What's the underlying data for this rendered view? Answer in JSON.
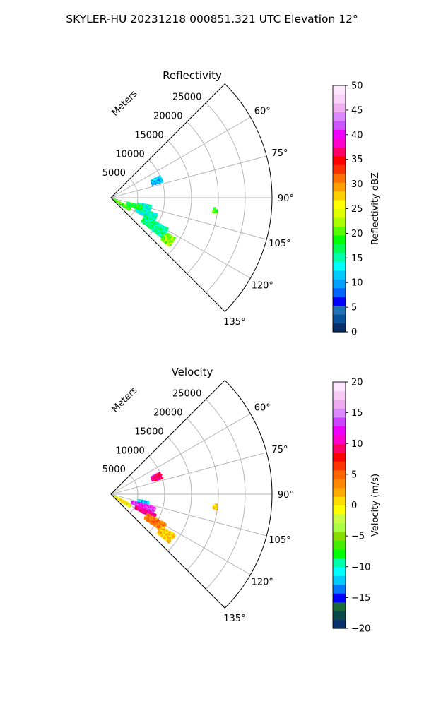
{
  "figure": {
    "title": "SKYLER-HU  20231218  000851.321 UTC Elevation 12°"
  },
  "chart_data": [
    {
      "type": "heatmap",
      "title": "Reflectivity",
      "projection": "polar-sector",
      "theta_ticks": [
        "60°",
        "75°",
        "90°",
        "105°",
        "120°",
        "135°"
      ],
      "theta_range_deg": [
        45,
        135
      ],
      "r_label": "Meters",
      "r_ticks": [
        "5000",
        "10000",
        "15000",
        "20000",
        "25000"
      ],
      "r_max": 30000,
      "grid": true,
      "colorbar": {
        "label": "Reflectivity dBZ",
        "range": [
          0,
          50
        ],
        "ticks": [
          "0",
          "5",
          "10",
          "15",
          "20",
          "25",
          "30",
          "35",
          "40",
          "45",
          "50"
        ],
        "colors": [
          "#08306b",
          "#08519c",
          "#2171b5",
          "#0000ff",
          "#0066ff",
          "#00a0ff",
          "#00ccff",
          "#00ffff",
          "#00ffaa",
          "#00ff55",
          "#00ff00",
          "#55ff00",
          "#aaff00",
          "#e0ff00",
          "#ffff00",
          "#ffd000",
          "#ffa000",
          "#ff7000",
          "#ff3000",
          "#ff0000",
          "#ff0066",
          "#ff00cc",
          "#ee00ff",
          "#cc55ff",
          "#dd88ff",
          "#f0b0f0",
          "#fad2fa",
          "#ffe8ff"
        ]
      },
      "echo_regions": [
        {
          "theta_deg": [
            116,
            124
          ],
          "range_m": [
            500,
            4000
          ],
          "value": 20
        },
        {
          "theta_deg": [
            100,
            108
          ],
          "range_m": [
            5000,
            7500
          ],
          "value": 14
        },
        {
          "theta_deg": [
            109,
            118
          ],
          "range_m": [
            5000,
            9000
          ],
          "value": 14
        },
        {
          "theta_deg": [
            118,
            128
          ],
          "range_m": [
            7000,
            12000
          ],
          "value": 16
        },
        {
          "theta_deg": [
            122,
            130
          ],
          "range_m": [
            12000,
            14000
          ],
          "value": 22
        },
        {
          "theta_deg": [
            104,
            112
          ],
          "range_m": [
            3000,
            6000
          ],
          "value": 18
        },
        {
          "theta_deg": [
            65,
            72
          ],
          "range_m": [
            8000,
            10000
          ],
          "value": 11
        },
        {
          "theta_deg": [
            95,
            98
          ],
          "range_m": [
            19000,
            19800
          ],
          "value": 20
        }
      ]
    },
    {
      "type": "heatmap",
      "title": "Velocity",
      "projection": "polar-sector",
      "theta_ticks": [
        "60°",
        "75°",
        "90°",
        "105°",
        "120°",
        "135°"
      ],
      "theta_range_deg": [
        45,
        135
      ],
      "r_label": "Meters",
      "r_ticks": [
        "5000",
        "10000",
        "15000",
        "20000",
        "25000"
      ],
      "r_max": 30000,
      "grid": true,
      "colorbar": {
        "label": "Velocity (m/s)",
        "range": [
          -20,
          20
        ],
        "ticks": [
          "−20",
          "−15",
          "−10",
          "−5",
          "0",
          "5",
          "10",
          "15",
          "20"
        ],
        "colors": [
          "#08306b",
          "#0b4a4a",
          "#1a6a3a",
          "#0000ff",
          "#0077ff",
          "#00ccff",
          "#00ffff",
          "#00ffaa",
          "#00ff00",
          "#44ee00",
          "#88dd00",
          "#aaff44",
          "#ccff44",
          "#ffff00",
          "#ffdd00",
          "#ffaa00",
          "#ff8800",
          "#ff6600",
          "#ff3300",
          "#ff0000",
          "#ff0066",
          "#ff00cc",
          "#ee00ff",
          "#cc44ff",
          "#dd88ff",
          "#eeaaee",
          "#f6ccf6",
          "#ffe8ff"
        ]
      },
      "echo_regions": [
        {
          "theta_deg": [
            116,
            124
          ],
          "range_m": [
            500,
            4000
          ],
          "value": 0
        },
        {
          "theta_deg": [
            100,
            106
          ],
          "range_m": [
            5000,
            7000
          ],
          "value": -12
        },
        {
          "theta_deg": [
            106,
            114
          ],
          "range_m": [
            4000,
            8500
          ],
          "value": 13
        },
        {
          "theta_deg": [
            114,
            120
          ],
          "range_m": [
            5000,
            9000
          ],
          "value": 10
        },
        {
          "theta_deg": [
            118,
            126
          ],
          "range_m": [
            7500,
            11500
          ],
          "value": 4
        },
        {
          "theta_deg": [
            122,
            130
          ],
          "range_m": [
            11000,
            14000
          ],
          "value": 1
        },
        {
          "theta_deg": [
            65,
            72
          ],
          "range_m": [
            8000,
            10000
          ],
          "value": 10
        },
        {
          "theta_deg": [
            95,
            98
          ],
          "range_m": [
            19000,
            19800
          ],
          "value": 1
        }
      ]
    }
  ]
}
